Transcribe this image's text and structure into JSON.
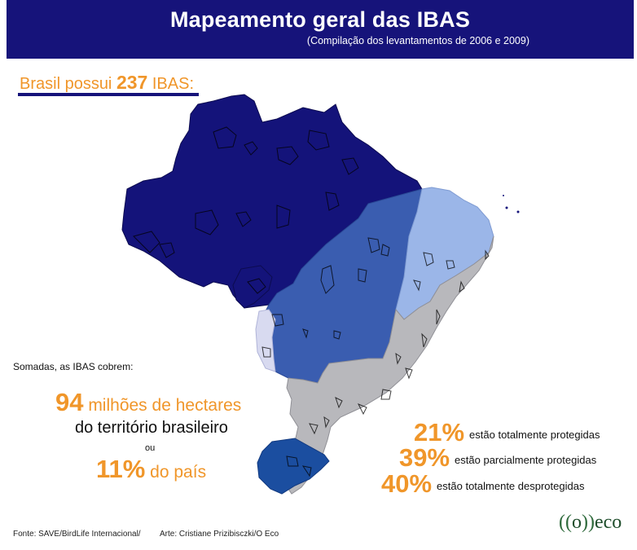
{
  "header": {
    "title": "Mapeamento geral das IBAS",
    "subtitle": "(Compilação dos levantamentos de 2006 e 2009)"
  },
  "intro": {
    "prefix": "Brasil possui ",
    "count": "237",
    "suffix": " IBAS:"
  },
  "summary": {
    "lead": "Somadas, as IBAS cobrem:",
    "hectares_number": "94",
    "hectares_text": " milhões de hectares",
    "territory_text": "do território brasileiro",
    "or_text": "ou",
    "percent_number": "11%",
    "percent_text": " do país"
  },
  "stats": [
    {
      "percent": "21%",
      "label": "estão totalmente protegidas"
    },
    {
      "percent": "39%",
      "label": "estão parcialmente protegidas"
    },
    {
      "percent": "40%",
      "label": "estão totalmente desprotegidas"
    }
  ],
  "footer": {
    "source": "Fonte: SAVE/BirdLife Internacional/",
    "art": "Arte: Cristiane Prizibisczki/O Eco"
  },
  "logo": {
    "open": "((",
    "mid": "o",
    "close": "))",
    "word": "eco"
  },
  "colors": {
    "header_bg": "#16137a",
    "accent_orange": "#f0962a",
    "amazon": "#14137a",
    "cerrado": "#3a5db0",
    "caatinga": "#9bb6e8",
    "pantanal": "#d8daf0",
    "atlantic": "#b8b8bc",
    "pampa": "#1b4ea0"
  }
}
